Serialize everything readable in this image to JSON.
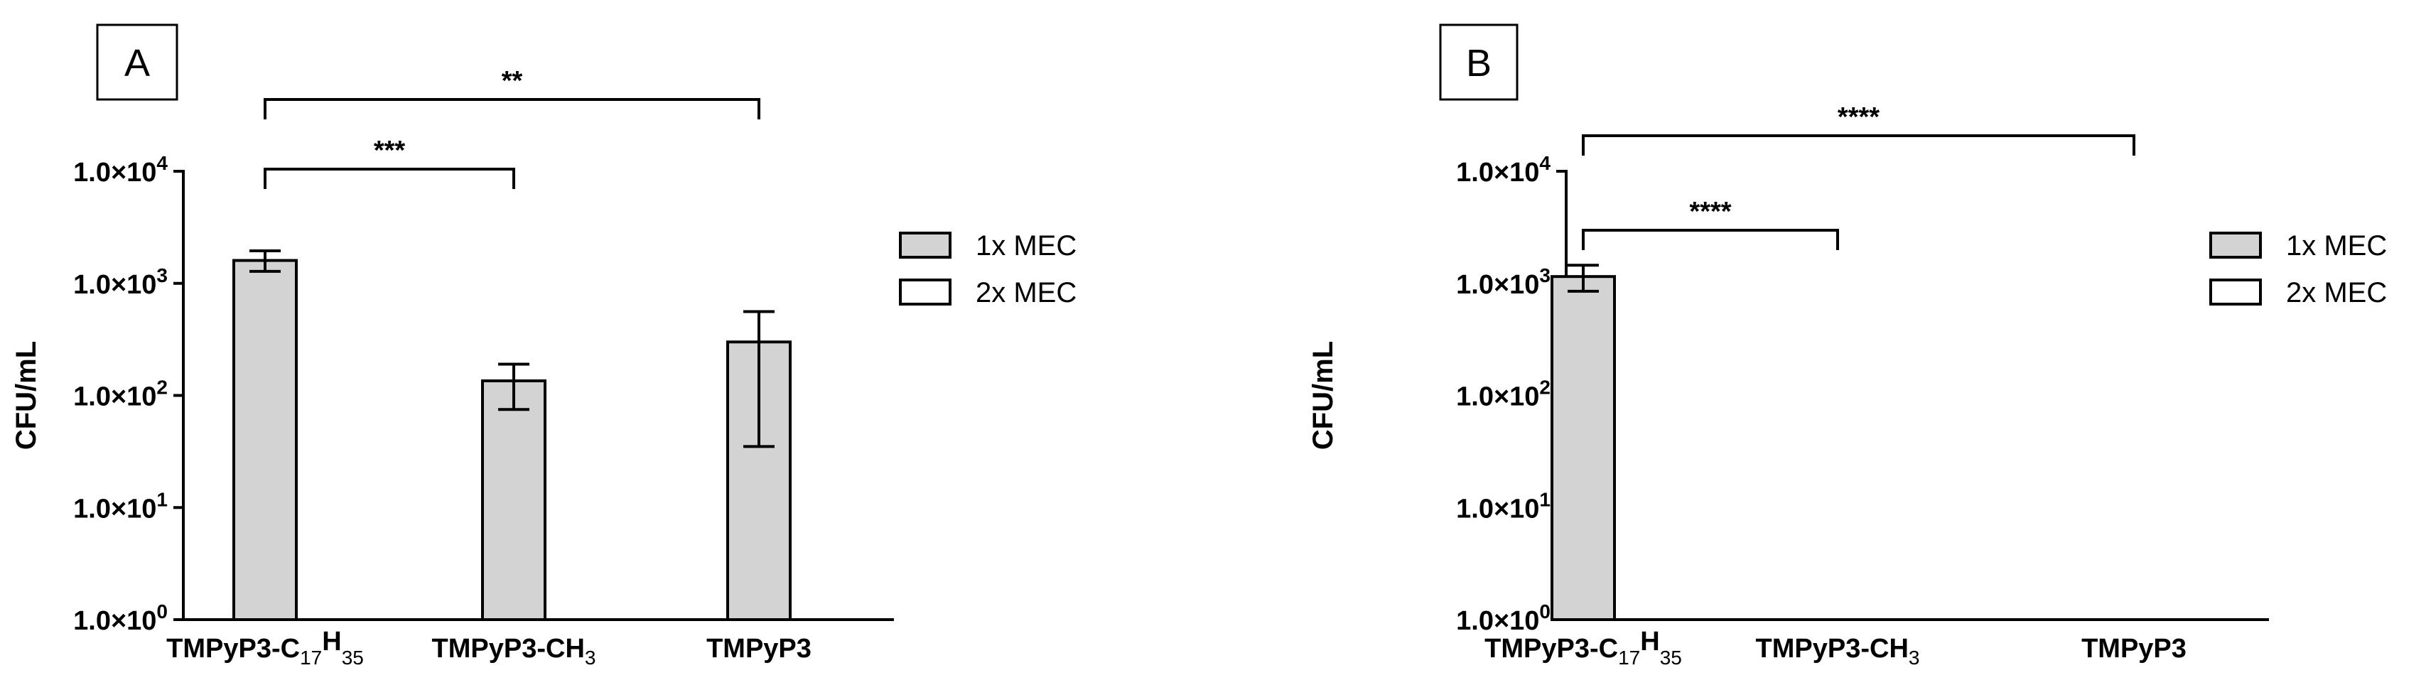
{
  "chart_data": [
    {
      "type": "bar",
      "panel_label": "A",
      "ylabel": "CFU/mL",
      "yscale": "log",
      "ylim": [
        1,
        10000
      ],
      "yticks": [
        {
          "value": 1,
          "mantissa": "1.0×10",
          "exp": "0"
        },
        {
          "value": 10,
          "mantissa": "1.0×10",
          "exp": "1"
        },
        {
          "value": 100,
          "mantissa": "1.0×10",
          "exp": "2"
        },
        {
          "value": 1000,
          "mantissa": "1.0×10",
          "exp": "3"
        },
        {
          "value": 10000,
          "mantissa": "1.0×10",
          "exp": "4"
        }
      ],
      "categories": [
        {
          "base": "TMPyP3-C",
          "sub1": "17",
          "mid": "H",
          "sub2": "35"
        },
        {
          "base": "TMPyP3-CH",
          "sub1": "3",
          "mid": "",
          "sub2": ""
        },
        {
          "base": "TMPyP3",
          "sub1": "",
          "mid": "",
          "sub2": ""
        }
      ],
      "series": [
        {
          "name": "1x MEC",
          "color": "#d3d3d3",
          "values": [
            1600,
            135,
            300
          ],
          "err_low": [
            1280,
            75,
            35
          ],
          "err_high": [
            1950,
            190,
            560
          ]
        },
        {
          "name": "2x MEC",
          "color": "#ffffff",
          "values": [
            null,
            null,
            null
          ]
        }
      ],
      "significance": [
        {
          "from": 0,
          "to": 1,
          "label": "***"
        },
        {
          "from": 0,
          "to": 2,
          "label": "**"
        }
      ],
      "grid": false,
      "legend": "right"
    },
    {
      "type": "bar",
      "panel_label": "B",
      "ylabel": "CFU/mL",
      "yscale": "log",
      "ylim": [
        1,
        10000
      ],
      "yticks": [
        {
          "value": 1,
          "mantissa": "1.0×10",
          "exp": "0"
        },
        {
          "value": 10,
          "mantissa": "1.0×10",
          "exp": "1"
        },
        {
          "value": 100,
          "mantissa": "1.0×10",
          "exp": "2"
        },
        {
          "value": 1000,
          "mantissa": "1.0×10",
          "exp": "3"
        },
        {
          "value": 10000,
          "mantissa": "1.0×10",
          "exp": "4"
        }
      ],
      "categories": [
        {
          "base": "TMPyP3-C",
          "sub1": "17",
          "mid": "H",
          "sub2": "35"
        },
        {
          "base": "TMPyP3-CH",
          "sub1": "3",
          "mid": "",
          "sub2": ""
        },
        {
          "base": "TMPyP3",
          "sub1": "",
          "mid": "",
          "sub2": ""
        }
      ],
      "series": [
        {
          "name": "1x MEC",
          "color": "#d3d3d3",
          "values": [
            1150,
            null,
            null
          ],
          "err_low": [
            850,
            null,
            null
          ],
          "err_high": [
            1450,
            null,
            null
          ]
        },
        {
          "name": "2x MEC",
          "color": "#ffffff",
          "values": [
            null,
            null,
            null
          ]
        }
      ],
      "significance": [
        {
          "from": 0,
          "to": 1,
          "label": "****"
        },
        {
          "from": 0,
          "to": 2,
          "label": "****"
        }
      ],
      "grid": false,
      "legend": "right"
    }
  ]
}
